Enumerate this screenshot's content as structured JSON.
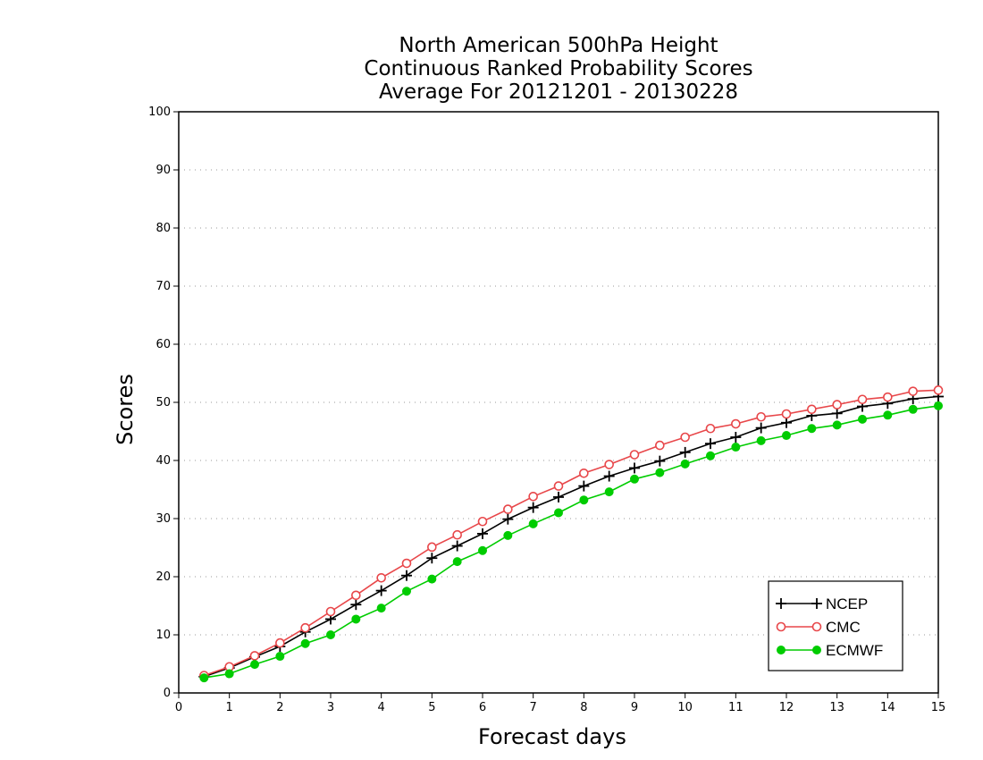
{
  "chart_data": {
    "type": "line",
    "title": "North American 500hPa Height",
    "subtitle": "Continuous Ranked Probability Scores",
    "period": "Average For 20121201 - 20130228",
    "xlabel": "Forecast days",
    "ylabel": "Scores",
    "xlim": [
      0,
      15
    ],
    "ylim": [
      0,
      100
    ],
    "x_ticks": [
      0,
      1,
      2,
      3,
      4,
      5,
      6,
      7,
      8,
      9,
      10,
      11,
      12,
      13,
      14,
      15
    ],
    "y_ticks": [
      0,
      10,
      20,
      30,
      40,
      50,
      60,
      70,
      80,
      90,
      100
    ],
    "grid": "horizontal dotted",
    "legend_position": "bottom-right",
    "x": [
      0.5,
      1,
      1.5,
      2,
      2.5,
      3,
      3.5,
      4,
      4.5,
      5,
      5.5,
      6,
      6.5,
      7,
      7.5,
      8,
      8.5,
      9,
      9.5,
      10,
      10.5,
      11,
      11.5,
      12,
      12.5,
      13,
      13.5,
      14,
      14.5,
      15
    ],
    "series": [
      {
        "name": "NCEP",
        "color": "#000000",
        "marker": "plus",
        "values": [
          2.8,
          4.3,
          6.2,
          8.0,
          10.5,
          12.7,
          15.2,
          17.6,
          20.2,
          23.2,
          25.3,
          27.4,
          29.9,
          31.9,
          33.7,
          35.6,
          37.3,
          38.7,
          39.9,
          41.4,
          42.9,
          44.0,
          45.6,
          46.5,
          47.7,
          48.1,
          49.3,
          49.8,
          50.6,
          51.0
        ]
      },
      {
        "name": "CMC",
        "color": "#e8474a",
        "marker": "open-circle",
        "values": [
          3.0,
          4.5,
          6.4,
          8.6,
          11.2,
          14.0,
          16.8,
          19.8,
          22.3,
          25.1,
          27.2,
          29.5,
          31.6,
          33.8,
          35.6,
          37.8,
          39.3,
          41.0,
          42.6,
          44.0,
          45.5,
          46.3,
          47.5,
          48.0,
          48.8,
          49.6,
          50.5,
          50.9,
          51.9,
          52.1
        ]
      },
      {
        "name": "ECMWF",
        "color": "#00cc00",
        "marker": "filled-circle",
        "values": [
          2.6,
          3.3,
          4.9,
          6.3,
          8.5,
          10.0,
          12.7,
          14.6,
          17.5,
          19.6,
          22.6,
          24.5,
          27.1,
          29.1,
          31.0,
          33.2,
          34.6,
          36.8,
          37.9,
          39.4,
          40.8,
          42.3,
          43.4,
          44.3,
          45.5,
          46.1,
          47.1,
          47.8,
          48.8,
          49.4
        ]
      }
    ]
  }
}
